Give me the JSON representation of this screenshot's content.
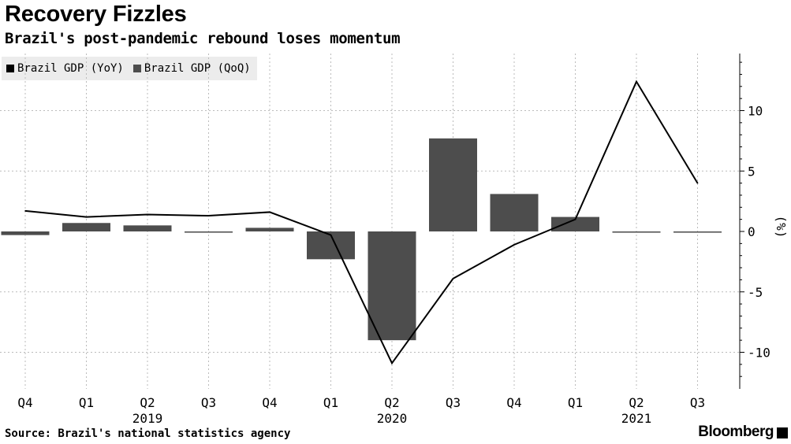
{
  "header": {
    "title": "Recovery Fizzles",
    "subtitle": "Brazil's post-pandemic rebound loses momentum"
  },
  "legend": {
    "items": [
      {
        "label": "Brazil GDP (YoY)",
        "color": "#000000"
      },
      {
        "label": "Brazil GDP (QoQ)",
        "color": "#4d4d4d"
      }
    ]
  },
  "footer": {
    "source": "Source: Brazil's national statistics agency",
    "brand": "Bloomberg"
  },
  "chart_data": {
    "type": "bar",
    "categories": [
      "Q4",
      "Q1",
      "Q2",
      "Q3",
      "Q4",
      "Q1",
      "Q2",
      "Q3",
      "Q4",
      "Q1",
      "Q2",
      "Q3"
    ],
    "year_labels": [
      {
        "label": "2019",
        "at_index": 2
      },
      {
        "label": "2020",
        "at_index": 6
      },
      {
        "label": "2021",
        "at_index": 10
      }
    ],
    "series": [
      {
        "name": "Brazil GDP (QoQ)",
        "type": "bar",
        "color": "#4d4d4d",
        "values": [
          -0.3,
          0.7,
          0.5,
          -0.1,
          0.3,
          -2.3,
          -9.0,
          7.7,
          3.1,
          1.2,
          -0.1,
          -0.1
        ]
      },
      {
        "name": "Brazil GDP (YoY)",
        "type": "line",
        "color": "#000000",
        "values": [
          1.7,
          1.2,
          1.4,
          1.3,
          1.6,
          -0.3,
          -10.9,
          -3.9,
          -1.1,
          1.0,
          12.4,
          4.0
        ]
      }
    ],
    "ylabel": "(%)",
    "y_axis_side": "right",
    "yticks": [
      10,
      5,
      0,
      -5,
      -10
    ],
    "ylim": [
      -13,
      14.5
    ],
    "grid": "vertical dotted"
  }
}
